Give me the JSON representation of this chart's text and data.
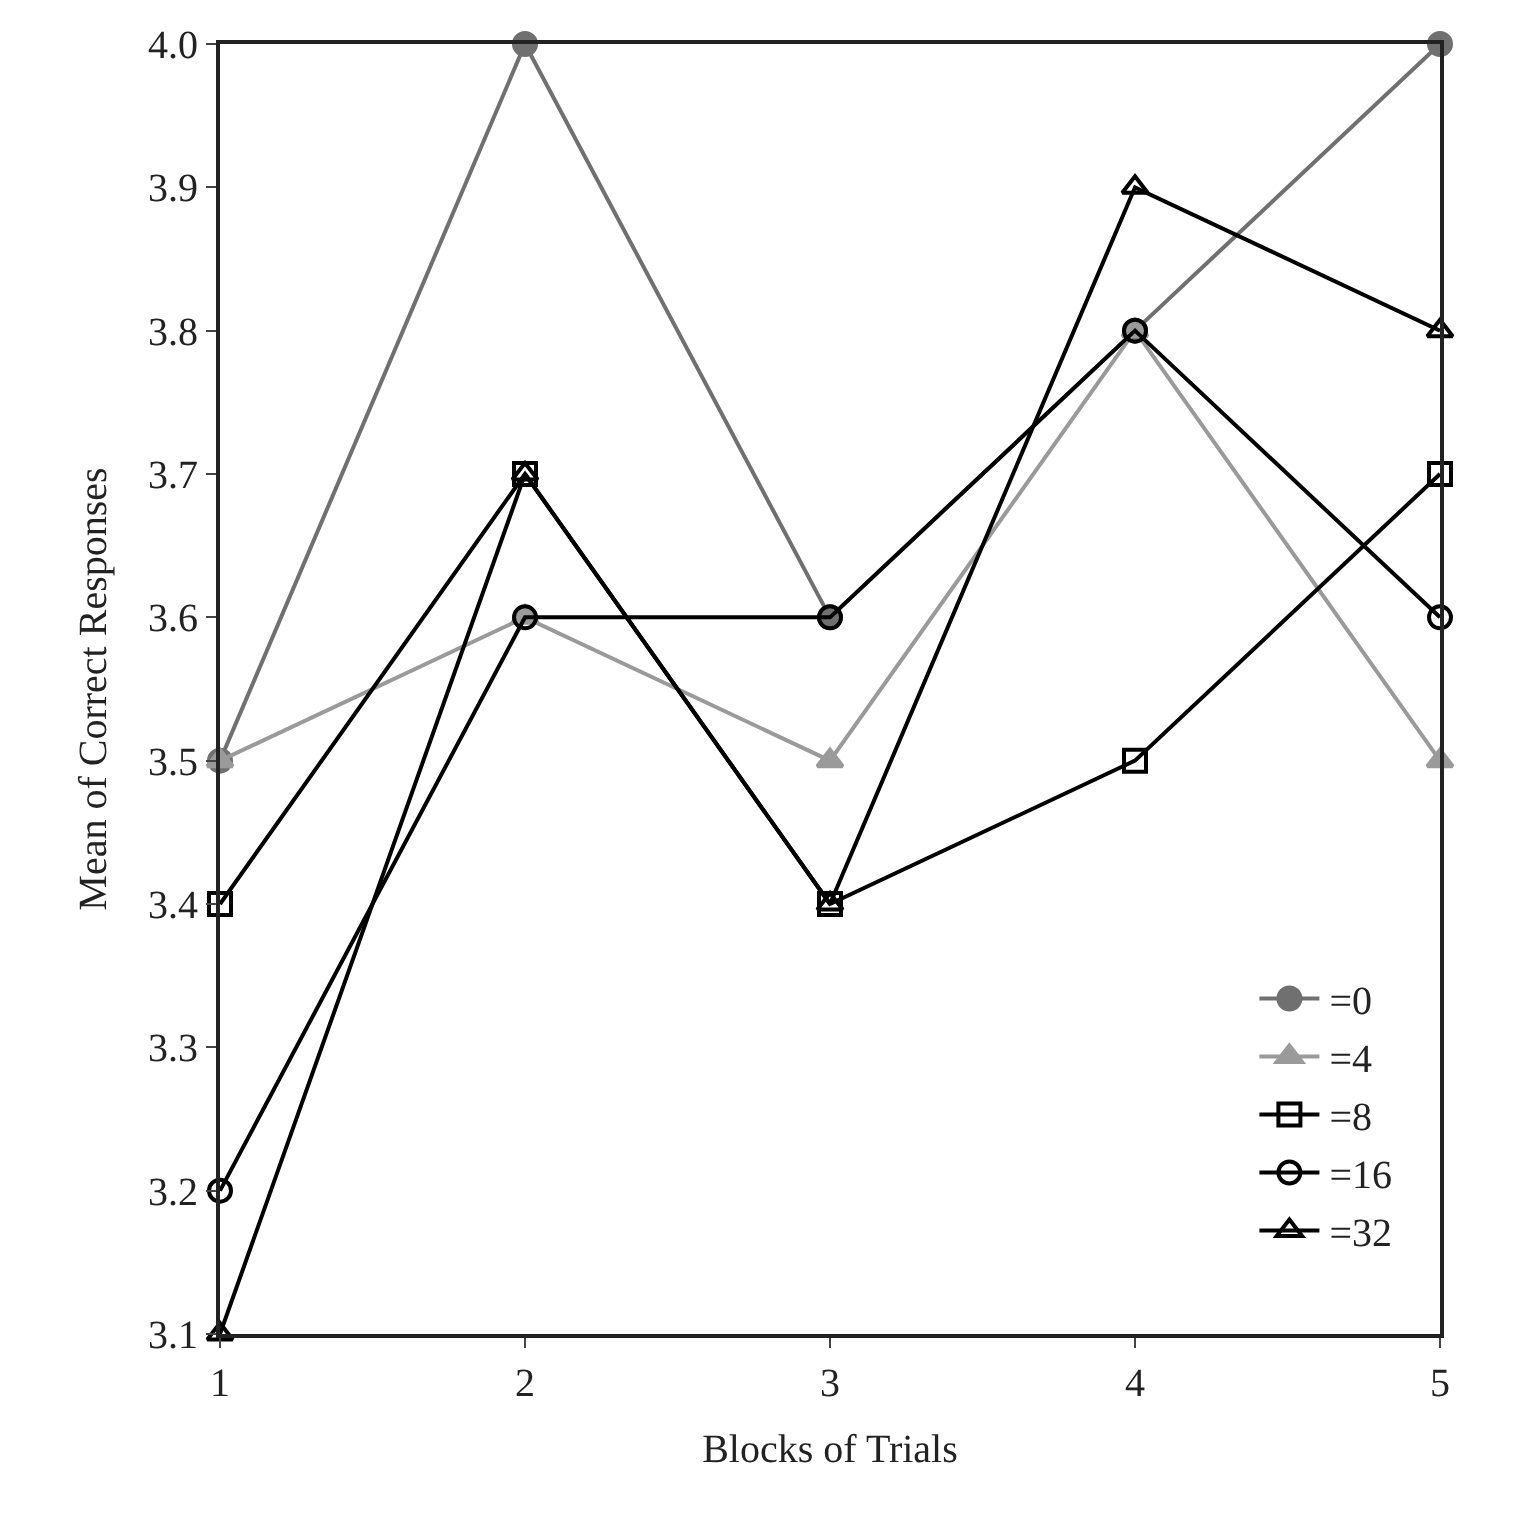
{
  "chart_data": {
    "type": "line",
    "xlabel": "Blocks of Trials",
    "ylabel": "Mean of Correct Responses",
    "x": [
      1,
      2,
      3,
      4,
      5
    ],
    "xlim": [
      1,
      5
    ],
    "xticks": [
      1,
      2,
      3,
      4,
      5
    ],
    "ylim": [
      3.1,
      4.0
    ],
    "yticks": [
      3.1,
      3.2,
      3.3,
      3.4,
      3.5,
      3.6,
      3.7,
      3.8,
      3.9,
      {
        "value": 4.0,
        "label": "4.0"
      }
    ],
    "legend": "bottom right",
    "line_style": "solid",
    "series": [
      {
        "name": "=0",
        "color": "#707070",
        "marker": "circle",
        "values": [
          3.5,
          4.0,
          3.6,
          3.8,
          4.0
        ]
      },
      {
        "name": "=4",
        "color": "#9a9a9a",
        "marker": "triangle",
        "values": [
          3.5,
          3.6,
          3.5,
          3.8,
          3.5
        ]
      },
      {
        "name": "=8",
        "color": "#000000",
        "marker": "square",
        "values": [
          3.4,
          3.7,
          3.4,
          3.5,
          3.7
        ]
      },
      {
        "name": "=16",
        "color": "#000000",
        "marker": "circle",
        "values": [
          3.2,
          3.6,
          3.6,
          3.8,
          3.6
        ]
      },
      {
        "name": "=32",
        "color": "#000000",
        "marker": "triangle",
        "values": [
          3.1,
          3.7,
          3.4,
          3.9,
          3.8
        ]
      }
    ]
  }
}
